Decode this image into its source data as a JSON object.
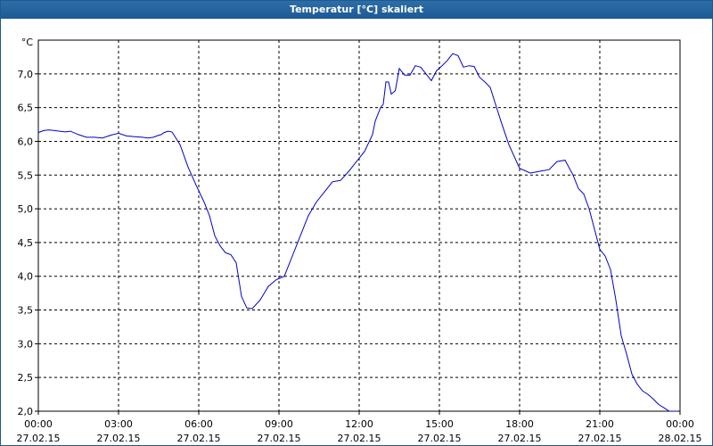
{
  "window": {
    "title": "Temperatur [°C] skaliert"
  },
  "colors": {
    "titlebar": "#1b5a94",
    "series": "#0000cc",
    "grid": "#000000"
  },
  "chart_data": {
    "type": "line",
    "title": "Temperatur [°C] skaliert",
    "ylabel": "°C",
    "xlabel": "",
    "ylim": [
      2.0,
      7.5
    ],
    "xlim_hours": [
      0,
      24
    ],
    "grid": true,
    "legend": "none",
    "y_ticks": [
      "2,0",
      "2,5",
      "3,0",
      "3,5",
      "4,0",
      "4,5",
      "5,0",
      "5,5",
      "6,0",
      "6,5",
      "7,0"
    ],
    "x_ticks": [
      {
        "time": "00:00",
        "date": "27.02.15"
      },
      {
        "time": "03:00",
        "date": "27.02.15"
      },
      {
        "time": "06:00",
        "date": "27.02.15"
      },
      {
        "time": "09:00",
        "date": "27.02.15"
      },
      {
        "time": "12:00",
        "date": "27.02.15"
      },
      {
        "time": "15:00",
        "date": "27.02.15"
      },
      {
        "time": "18:00",
        "date": "27.02.15"
      },
      {
        "time": "21:00",
        "date": "27.02.15"
      },
      {
        "time": "00:00",
        "date": "28.02.15"
      }
    ],
    "series": [
      {
        "x": [
          0,
          0.2,
          0.4,
          0.6,
          0.8,
          1.0,
          1.2,
          1.5,
          1.8,
          2.1,
          2.4,
          2.7,
          3.0,
          3.3,
          3.6,
          3.9,
          4.1,
          4.3,
          4.5,
          4.6,
          4.7,
          4.85,
          5.0,
          5.3,
          5.6,
          5.9,
          6.2,
          6.4,
          6.6,
          6.8,
          7.0,
          7.2,
          7.4,
          7.6,
          7.8,
          8.0,
          8.3,
          8.6,
          8.9,
          9.2,
          9.5,
          9.8,
          10.1,
          10.4,
          10.7,
          11.0,
          11.3,
          11.6,
          11.9,
          12.2,
          12.5,
          12.6,
          12.8,
          12.9,
          13.0,
          13.1,
          13.2,
          13.35,
          13.5,
          13.7,
          13.9,
          14.1,
          14.3,
          14.5,
          14.7,
          14.9,
          15.1,
          15.3,
          15.5,
          15.7,
          15.9,
          16.1,
          16.3,
          16.5,
          16.7,
          16.9,
          17.1,
          17.3,
          17.6,
          18.0,
          18.4,
          18.8,
          19.1,
          19.4,
          19.7,
          20.0,
          20.2,
          20.4,
          20.6,
          20.8,
          21.0,
          21.2,
          21.4,
          21.6,
          21.8,
          22.0,
          22.2,
          22.4,
          22.6,
          22.8,
          23.0,
          23.2,
          23.4,
          23.6,
          23.8,
          23.9
        ],
        "y": [
          6.13,
          6.16,
          6.17,
          6.16,
          6.15,
          6.14,
          6.15,
          6.1,
          6.06,
          6.06,
          6.05,
          6.09,
          6.12,
          6.08,
          6.07,
          6.06,
          6.05,
          6.06,
          6.09,
          6.1,
          6.13,
          6.15,
          6.14,
          5.95,
          5.62,
          5.35,
          5.1,
          4.9,
          4.6,
          4.45,
          4.35,
          4.32,
          4.2,
          3.7,
          3.53,
          3.52,
          3.65,
          3.85,
          3.95,
          4.0,
          4.3,
          4.6,
          4.9,
          5.1,
          5.25,
          5.4,
          5.42,
          5.55,
          5.7,
          5.85,
          6.1,
          6.3,
          6.5,
          6.55,
          6.88,
          6.88,
          6.7,
          6.75,
          7.08,
          6.98,
          6.98,
          7.12,
          7.1,
          7.0,
          6.9,
          7.05,
          7.12,
          7.2,
          7.3,
          7.27,
          7.1,
          7.12,
          7.11,
          6.95,
          6.88,
          6.8,
          6.55,
          6.3,
          5.95,
          5.6,
          5.53,
          5.56,
          5.58,
          5.7,
          5.72,
          5.5,
          5.3,
          5.22,
          5.0,
          4.7,
          4.4,
          4.3,
          4.1,
          3.65,
          3.12,
          2.85,
          2.55,
          2.4,
          2.3,
          2.25,
          2.18,
          2.1,
          2.05,
          2.0,
          2.0,
          2.0
        ]
      }
    ]
  }
}
